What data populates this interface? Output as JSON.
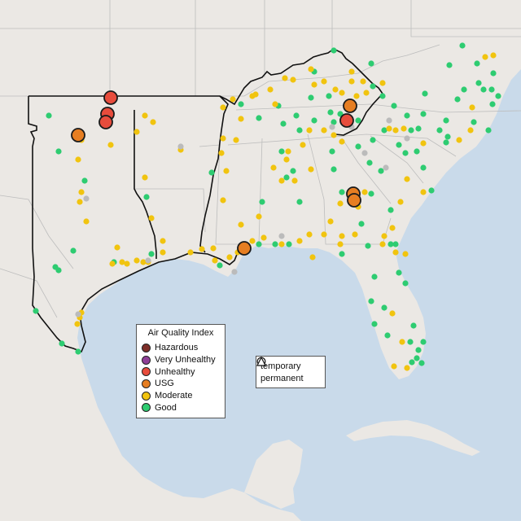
{
  "legend": {
    "title": "Air Quality Index",
    "items": [
      {
        "label": "Hazardous",
        "color": "#7e2f29"
      },
      {
        "label": "Very Unhealthy",
        "color": "#8f3f97"
      },
      {
        "label": "Unhealthy",
        "color": "#e74c3c"
      },
      {
        "label": "USG",
        "color": "#e67e22"
      },
      {
        "label": "Moderate",
        "color": "#f1c40f"
      },
      {
        "label": "Good",
        "color": "#2ecc71"
      }
    ],
    "no_data_color": "#bbbbbb"
  },
  "monitor_types": [
    {
      "label": "temporary",
      "icon": "circle-icon"
    },
    {
      "label": "permanent",
      "icon": "triangle-icon"
    }
  ],
  "colors": {
    "land": "#ebe8e4",
    "water": "#c9daea",
    "state_border": "#bdbdbd",
    "region_outline": "#111111"
  }
}
